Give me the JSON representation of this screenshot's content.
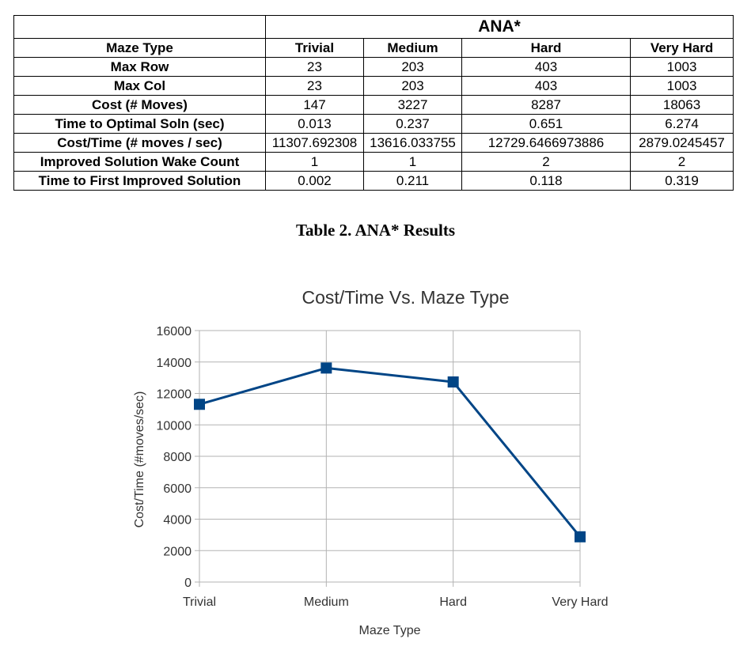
{
  "table": {
    "group_label": "ANA*",
    "header_label": "Maze Type",
    "columns": [
      "Trivial",
      "Medium",
      "Hard",
      "Very Hard"
    ],
    "rows": [
      {
        "label": "Max Row",
        "values": [
          "23",
          "203",
          "403",
          "1003"
        ]
      },
      {
        "label": "Max Col",
        "values": [
          "23",
          "203",
          "403",
          "1003"
        ]
      },
      {
        "label": "Cost (# Moves)",
        "values": [
          "147",
          "3227",
          "8287",
          "18063"
        ]
      },
      {
        "label": "Time to Optimal Soln (sec)",
        "values": [
          "0.013",
          "0.237",
          "0.651",
          "6.274"
        ]
      },
      {
        "label": "Cost/Time (# moves / sec)",
        "values": [
          "11307.692308",
          "13616.033755",
          "12729.6466973886",
          "2879.0245457"
        ]
      },
      {
        "label": "Improved Solution Wake Count",
        "values": [
          "1",
          "1",
          "2",
          "2"
        ]
      },
      {
        "label": "Time to First Improved Solution",
        "values": [
          "0.002",
          "0.211",
          "0.118",
          "0.319"
        ]
      }
    ]
  },
  "caption": "Table 2. ANA* Results",
  "chart_data": {
    "type": "line",
    "title": "Cost/Time Vs. Maze Type",
    "xlabel": "Maze Type",
    "ylabel": "Cost/Time (#moves/sec)",
    "categories": [
      "Trivial",
      "Medium",
      "Hard",
      "Very Hard"
    ],
    "series": [
      {
        "values": [
          11307.692308,
          13616.033755,
          12729.6466973886,
          2879.0245457
        ],
        "color": "#004586",
        "marker": "square"
      }
    ],
    "ylim": [
      0,
      16000
    ],
    "yticks": [
      0,
      2000,
      4000,
      6000,
      8000,
      10000,
      12000,
      14000,
      16000
    ],
    "grid": true,
    "legend": "none"
  }
}
